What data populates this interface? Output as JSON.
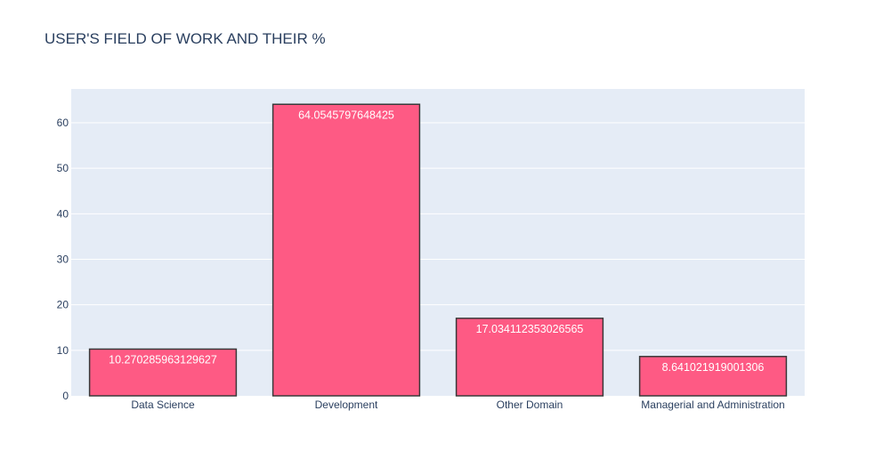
{
  "chart_data": {
    "type": "bar",
    "title": "USER'S FIELD OF WORK AND THEIR %",
    "xlabel": "",
    "ylabel": "",
    "categories": [
      "Data Science",
      "Development",
      "Other Domain",
      "Managerial and Administration"
    ],
    "values": [
      10.270285963129627,
      64.0545797648425,
      17.034112353026565,
      8.641021919001306
    ],
    "data_labels": [
      "10.270285963129627",
      "64.0545797648425",
      "17.034112353026565",
      "8.641021919001306"
    ],
    "ylim": [
      0,
      67.42587343667631
    ],
    "yticks": [
      0,
      10,
      20,
      30,
      40,
      50,
      60
    ],
    "grid": true,
    "legend": "none",
    "colors": {
      "bar_fill": "#fe5a84",
      "bar_stroke": "#3a3a3a",
      "plot_bg": "#e5ecf6",
      "grid": "#ffffff",
      "text": "#2a3f5f",
      "label_text": "#ffffff"
    }
  }
}
